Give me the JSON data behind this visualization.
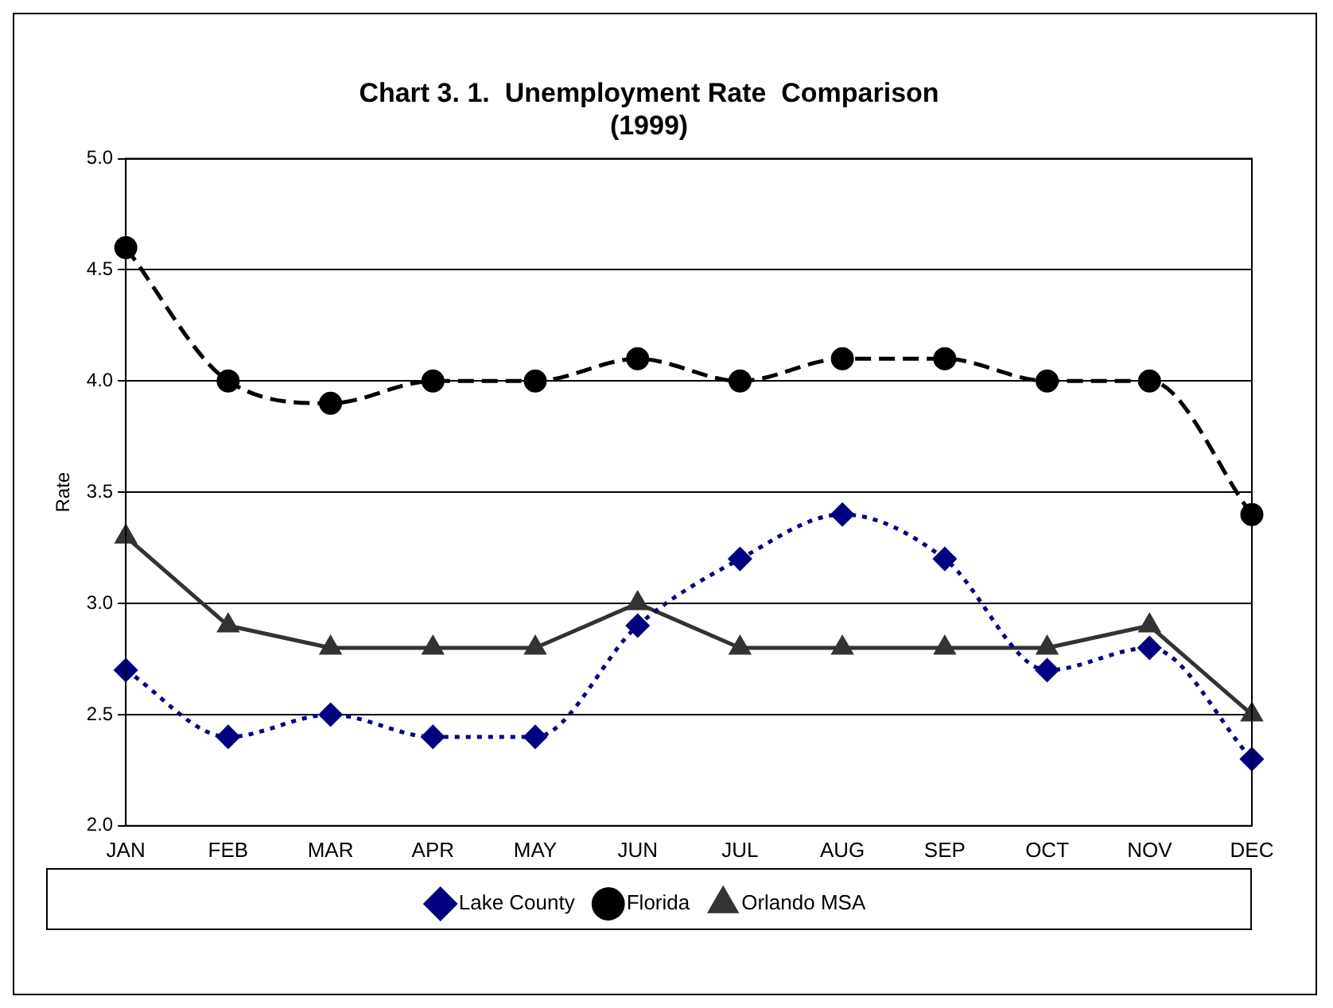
{
  "chart_data": {
    "type": "line",
    "title": "Chart 3. 1.  Unemployment Rate  Comparison\n(1999)",
    "ylabel": "Rate",
    "categories": [
      "JAN",
      "FEB",
      "MAR",
      "APR",
      "MAY",
      "JUN",
      "JUL",
      "AUG",
      "SEP",
      "OCT",
      "NOV",
      "DEC"
    ],
    "series": [
      {
        "name": "Lake County",
        "color": "#000080",
        "marker": "diamond",
        "line_style": "dotted",
        "values": [
          2.7,
          2.4,
          2.5,
          2.4,
          2.4,
          2.9,
          3.2,
          3.4,
          3.2,
          2.7,
          2.8,
          2.3
        ]
      },
      {
        "name": "Florida",
        "color": "#000000",
        "marker": "circle",
        "line_style": "dashed",
        "values": [
          4.6,
          4.0,
          3.9,
          4.0,
          4.0,
          4.1,
          4.0,
          4.1,
          4.1,
          4.0,
          4.0,
          3.4
        ]
      },
      {
        "name": "Orlando MSA",
        "color": "#333333",
        "marker": "triangle",
        "line_style": "solid",
        "values": [
          3.3,
          2.9,
          2.8,
          2.8,
          2.8,
          3.0,
          2.8,
          2.8,
          2.8,
          2.8,
          2.9,
          2.5
        ]
      }
    ],
    "ylim": [
      2.0,
      5.0
    ],
    "yticks": [
      {
        "value": 2,
        "label": "2.0"
      },
      {
        "value": 2.5,
        "label": "2.5"
      },
      {
        "value": 3,
        "label": "3.0"
      },
      {
        "value": 3.5,
        "label": "3.5"
      },
      {
        "value": 4,
        "label": "4.0"
      },
      {
        "value": 4.5,
        "label": "4.5"
      },
      {
        "value": 5,
        "label": "5.0"
      }
    ],
    "grid": "y",
    "legend": "bottom"
  }
}
